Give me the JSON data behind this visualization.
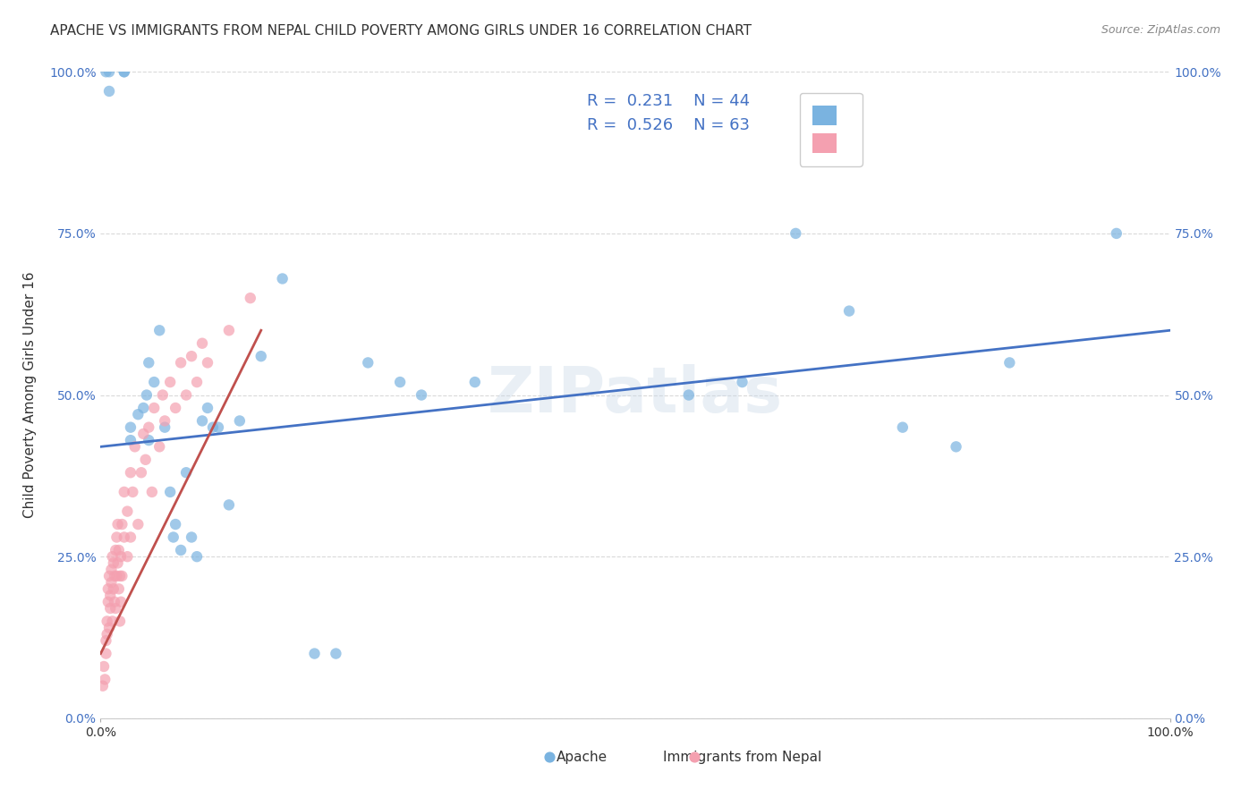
{
  "title": "APACHE VS IMMIGRANTS FROM NEPAL CHILD POVERTY AMONG GIRLS UNDER 16 CORRELATION CHART",
  "source": "Source: ZipAtlas.com",
  "xlabel": "",
  "ylabel": "Child Poverty Among Girls Under 16",
  "xlim": [
    0,
    1
  ],
  "ylim": [
    0,
    1
  ],
  "xtick_labels": [
    "0.0%",
    "100.0%"
  ],
  "ytick_labels": [
    "0.0%",
    "25.0%",
    "50.0%",
    "75.0%",
    "100.0%"
  ],
  "ytick_positions": [
    0.0,
    0.25,
    0.5,
    0.75,
    1.0
  ],
  "watermark": "ZIPatlas",
  "legend_r1": "R =  0.231   N = 44",
  "legend_r2": "R =  0.526   N = 63",
  "blue_color": "#7ab3e0",
  "pink_color": "#f4a0b0",
  "trend_blue": "#4472c4",
  "trend_pink": "#c0504d",
  "apache_scatter_x": [
    0.005,
    0.008,
    0.008,
    0.022,
    0.022,
    0.028,
    0.028,
    0.035,
    0.04,
    0.043,
    0.045,
    0.045,
    0.05,
    0.055,
    0.06,
    0.065,
    0.068,
    0.07,
    0.075,
    0.08,
    0.085,
    0.09,
    0.095,
    0.1,
    0.105,
    0.11,
    0.12,
    0.13,
    0.15,
    0.17,
    0.2,
    0.22,
    0.25,
    0.28,
    0.3,
    0.35,
    0.55,
    0.6,
    0.65,
    0.7,
    0.75,
    0.8,
    0.85,
    0.95
  ],
  "apache_scatter_y": [
    1.0,
    1.0,
    0.97,
    1.0,
    1.0,
    0.45,
    0.43,
    0.47,
    0.48,
    0.5,
    0.55,
    0.43,
    0.52,
    0.6,
    0.45,
    0.35,
    0.28,
    0.3,
    0.26,
    0.38,
    0.28,
    0.25,
    0.46,
    0.48,
    0.45,
    0.45,
    0.33,
    0.46,
    0.56,
    0.68,
    0.1,
    0.1,
    0.55,
    0.52,
    0.5,
    0.52,
    0.5,
    0.52,
    0.75,
    0.63,
    0.45,
    0.42,
    0.55,
    0.75
  ],
  "nepal_scatter_x": [
    0.002,
    0.003,
    0.004,
    0.005,
    0.005,
    0.006,
    0.006,
    0.007,
    0.007,
    0.008,
    0.008,
    0.009,
    0.009,
    0.01,
    0.01,
    0.011,
    0.011,
    0.012,
    0.012,
    0.013,
    0.013,
    0.014,
    0.014,
    0.015,
    0.015,
    0.016,
    0.016,
    0.017,
    0.017,
    0.018,
    0.018,
    0.019,
    0.019,
    0.02,
    0.02,
    0.022,
    0.022,
    0.025,
    0.025,
    0.028,
    0.028,
    0.03,
    0.032,
    0.035,
    0.038,
    0.04,
    0.042,
    0.045,
    0.048,
    0.05,
    0.055,
    0.058,
    0.06,
    0.065,
    0.07,
    0.075,
    0.08,
    0.085,
    0.09,
    0.095,
    0.1,
    0.12,
    0.14
  ],
  "nepal_scatter_y": [
    0.05,
    0.08,
    0.06,
    0.12,
    0.1,
    0.15,
    0.13,
    0.18,
    0.2,
    0.22,
    0.14,
    0.17,
    0.19,
    0.21,
    0.23,
    0.25,
    0.15,
    0.2,
    0.24,
    0.22,
    0.18,
    0.26,
    0.17,
    0.22,
    0.28,
    0.24,
    0.3,
    0.2,
    0.26,
    0.15,
    0.22,
    0.18,
    0.25,
    0.3,
    0.22,
    0.28,
    0.35,
    0.25,
    0.32,
    0.38,
    0.28,
    0.35,
    0.42,
    0.3,
    0.38,
    0.44,
    0.4,
    0.45,
    0.35,
    0.48,
    0.42,
    0.5,
    0.46,
    0.52,
    0.48,
    0.55,
    0.5,
    0.56,
    0.52,
    0.58,
    0.55,
    0.6,
    0.65
  ],
  "blue_trend_x": [
    0.0,
    1.0
  ],
  "blue_trend_y": [
    0.42,
    0.6
  ],
  "pink_trend_x": [
    0.0,
    0.15
  ],
  "pink_trend_y": [
    0.1,
    0.6
  ],
  "background_color": "#ffffff",
  "grid_color": "#d0d0d0",
  "title_fontsize": 11,
  "axis_label_fontsize": 11,
  "tick_fontsize": 10,
  "marker_size": 80
}
